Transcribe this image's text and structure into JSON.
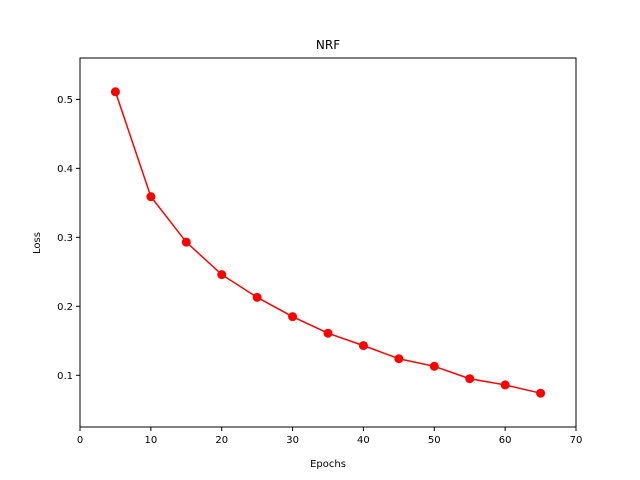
{
  "chart_data": {
    "type": "line",
    "title": "NRF",
    "xlabel": "Epochs",
    "ylabel": "Loss",
    "xlim": [
      0,
      70
    ],
    "ylim": [
      0.025,
      0.56
    ],
    "xticks": [
      0,
      10,
      20,
      30,
      40,
      50,
      60,
      70
    ],
    "yticks": [
      0.1,
      0.2,
      0.3,
      0.4,
      0.5
    ],
    "grid": false,
    "series": [
      {
        "color": "#ff0000",
        "marker": "circle",
        "x": [
          5,
          10,
          15,
          20,
          25,
          30,
          35,
          40,
          45,
          50,
          55,
          60,
          65
        ],
        "y": [
          0.511,
          0.359,
          0.293,
          0.246,
          0.213,
          0.185,
          0.161,
          0.143,
          0.124,
          0.113,
          0.095,
          0.086,
          0.074
        ]
      }
    ]
  }
}
